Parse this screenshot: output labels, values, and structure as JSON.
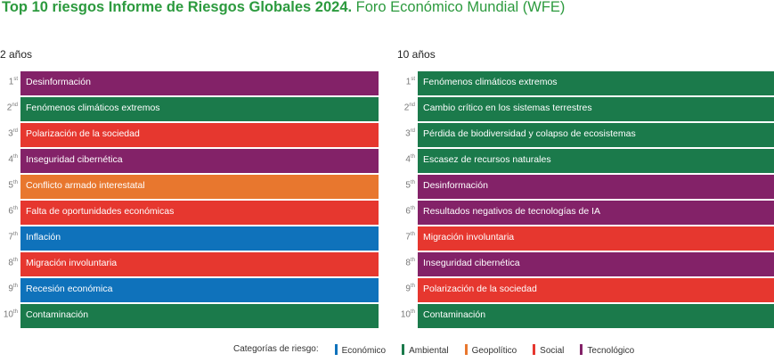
{
  "title_bold": "Top 10 riesgos Informe de Riesgos Globales 2024.",
  "title_rest": " Foro Económico Mundial (WFE)",
  "colors": {
    "Económico": "#0f72bb",
    "Ambiental": "#1b7a4b",
    "Geopolítico": "#e8772e",
    "Social": "#e6372f",
    "Tecnológico": "#832268"
  },
  "chart_data": {
    "type": "table",
    "columns": [
      {
        "heading": "2 años",
        "rows": [
          {
            "rank": "1",
            "suffix": "st",
            "label": "Desinformación",
            "category": "Tecnológico"
          },
          {
            "rank": "2",
            "suffix": "nd",
            "label": "Fenómenos climáticos extremos",
            "category": "Ambiental"
          },
          {
            "rank": "3",
            "suffix": "rd",
            "label": "Polarización de la sociedad",
            "category": "Social"
          },
          {
            "rank": "4",
            "suffix": "th",
            "label": "Inseguridad cibernética",
            "category": "Tecnológico"
          },
          {
            "rank": "5",
            "suffix": "th",
            "label": "Conflicto armado interestatal",
            "category": "Geopolítico"
          },
          {
            "rank": "6",
            "suffix": "th",
            "label": "Falta de oportunidades económicas",
            "category": "Social"
          },
          {
            "rank": "7",
            "suffix": "th",
            "label": "Inflación",
            "category": "Económico"
          },
          {
            "rank": "8",
            "suffix": "th",
            "label": "Migración involuntaria",
            "category": "Social"
          },
          {
            "rank": "9",
            "suffix": "th",
            "label": "Recesión económica",
            "category": "Económico"
          },
          {
            "rank": "10",
            "suffix": "th",
            "label": "Contaminación",
            "category": "Ambiental"
          }
        ]
      },
      {
        "heading": "10 años",
        "rows": [
          {
            "rank": "1",
            "suffix": "st",
            "label": "Fenómenos climáticos extremos",
            "category": "Ambiental"
          },
          {
            "rank": "2",
            "suffix": "nd",
            "label": "Cambio crítico en los sistemas terrestres",
            "category": "Ambiental"
          },
          {
            "rank": "3",
            "suffix": "rd",
            "label": "Pérdida de biodiversidad y colapso de ecosistemas",
            "category": "Ambiental"
          },
          {
            "rank": "4",
            "suffix": "th",
            "label": "Escasez de recursos naturales",
            "category": "Ambiental"
          },
          {
            "rank": "5",
            "suffix": "th",
            "label": "Desinformación",
            "category": "Tecnológico"
          },
          {
            "rank": "6",
            "suffix": "th",
            "label": "Resultados negativos de tecnologías de IA",
            "category": "Tecnológico"
          },
          {
            "rank": "7",
            "suffix": "th",
            "label": "Migración involuntaria",
            "category": "Social"
          },
          {
            "rank": "8",
            "suffix": "th",
            "label": "Inseguridad cibernética",
            "category": "Tecnológico"
          },
          {
            "rank": "9",
            "suffix": "th",
            "label": "Polarización de la sociedad",
            "category": "Social"
          },
          {
            "rank": "10",
            "suffix": "th",
            "label": "Contaminación",
            "category": "Ambiental"
          }
        ]
      }
    ],
    "legend": {
      "title": "Categorías de riesgo:",
      "items": [
        "Económico",
        "Ambiental",
        "Geopolítico",
        "Social",
        "Tecnológico"
      ]
    }
  }
}
